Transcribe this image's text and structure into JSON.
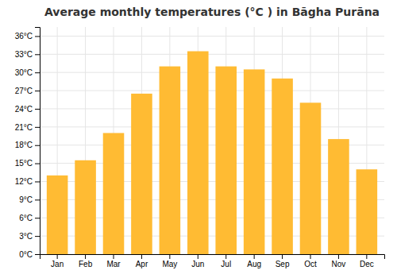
{
  "chart_data": {
    "type": "bar",
    "title": "Average monthly temperatures (°C ) in Bāgha Purāna",
    "categories": [
      "Jan",
      "Feb",
      "Mar",
      "Apr",
      "May",
      "Jun",
      "Jul",
      "Aug",
      "Sep",
      "Oct",
      "Nov",
      "Dec"
    ],
    "values": [
      13,
      15.5,
      20,
      26.5,
      31,
      33.5,
      31,
      30.5,
      29,
      25,
      19,
      14
    ],
    "color": "#FFBB33",
    "ylim": [
      0,
      37.5
    ],
    "yticks": [
      {
        "value": 0,
        "label": "0°C"
      },
      {
        "value": 3,
        "label": "3°C"
      },
      {
        "value": 6,
        "label": "6°C"
      },
      {
        "value": 9,
        "label": "9°C"
      },
      {
        "value": 12,
        "label": "12°C"
      },
      {
        "value": 15,
        "label": "15°C"
      },
      {
        "value": 18,
        "label": "18°C"
      },
      {
        "value": 21,
        "label": "21°C"
      },
      {
        "value": 24,
        "label": "24°C"
      },
      {
        "value": 27,
        "label": "27°C"
      },
      {
        "value": 30,
        "label": "30°C"
      },
      {
        "value": 33,
        "label": "33°C"
      },
      {
        "value": 36,
        "label": "36°C"
      }
    ],
    "grid": true
  }
}
